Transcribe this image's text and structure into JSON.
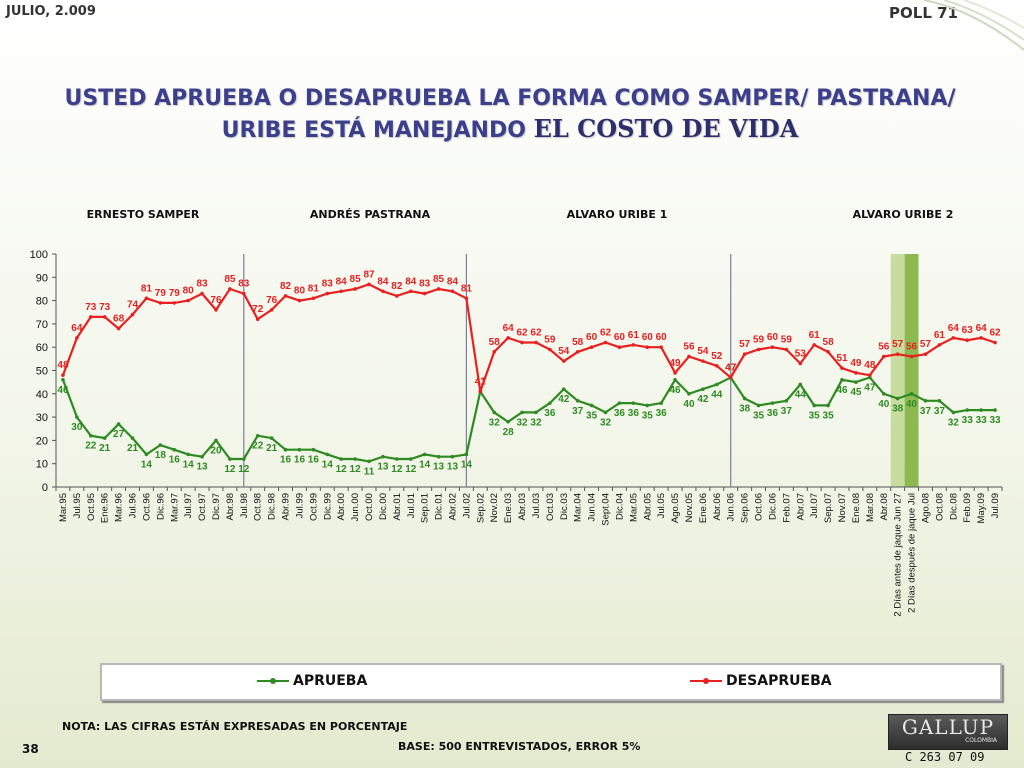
{
  "header": {
    "date": "JULIO, 2.009",
    "poll": "POLL 71"
  },
  "title": {
    "line1": "USTED APRUEBA O DESAPRUEBA LA FORMA COMO SAMPER/ PASTRANA/",
    "line2_prefix": "URIBE ESTÁ MANEJANDO ",
    "line2_highlight": "EL COSTO DE VIDA"
  },
  "legend": {
    "approve": "APRUEBA",
    "disapprove": "DESAPRUEBA"
  },
  "footer": {
    "note": "NOTA: LAS CIFRAS ESTÁN EXPRESADAS EN PORCENTAJE",
    "base": "BASE: 500 ENTREVISTADOS, ERROR 5%",
    "page": "38",
    "code": "C 263 07 09",
    "logo": "GALLUP",
    "logo_sub": "COLOMBIA"
  },
  "colors": {
    "approve": "#2e8b22",
    "disapprove": "#e82020",
    "band_light": "#c8dca0",
    "band_dark": "#8cba50"
  },
  "chart_data": {
    "type": "line",
    "title": "",
    "xlabel": "",
    "ylabel": "",
    "ylim": [
      0,
      100
    ],
    "yticks": [
      0,
      10,
      20,
      30,
      40,
      50,
      60,
      70,
      80,
      90,
      100
    ],
    "periods": [
      "ERNESTO SAMPER",
      "ANDRÉS  PASTRANA",
      "ALVARO URIBE 1",
      "ALVARO URIBE 2"
    ],
    "x": [
      "Mar.95",
      "Jul.95",
      "Oct.95",
      "Ene.96",
      "Mar.96",
      "Jul.96",
      "Oct.96",
      "Dic.96",
      "Mar.97",
      "Jul.97",
      "Oct.97",
      "Dic.97",
      "Abr.98",
      "Jul.98",
      "Oct.98",
      "Dic.98",
      "Abr.99",
      "Jul.99",
      "Oct.99",
      "Dic.99",
      "Abr.00",
      "Jun.00",
      "Oct.00",
      "Dic.00",
      "Abr.01",
      "Jul.01",
      "Sep.01",
      "Dic.01",
      "Abr.02",
      "Jul.02",
      "Sep.02",
      "Nov.02",
      "Ene.03",
      "Abr.03",
      "Jul.03",
      "Oct.03",
      "Dic.03",
      "Mar.04",
      "Jun.04",
      "Sept.04",
      "Dic.04",
      "Mar.05",
      "Abr.05",
      "Jul.05",
      "Ago.05",
      "Nov.05",
      "Ene.06",
      "Abr.06",
      "Jun.06",
      "Sep.06",
      "Oct.06",
      "Dic.06",
      "Feb.07",
      "Abr.07",
      "Jul.07",
      "Sep.07",
      "Nov.07",
      "Ene.08",
      "Mar.08",
      "Abr.08",
      "2 Días antes de jaque Jun 27",
      "2 Días después de jaque Jul",
      "Ago.08",
      "Oct.08",
      "Dic.08",
      "Feb.09",
      "May.09",
      "Jul.09"
    ],
    "series": [
      {
        "name": "APRUEBA",
        "values": [
          46,
          30,
          22,
          21,
          27,
          21,
          14,
          18,
          16,
          14,
          13,
          20,
          12,
          12,
          22,
          21,
          16,
          16,
          16,
          14,
          12,
          12,
          11,
          13,
          12,
          12,
          14,
          13,
          13,
          14,
          41,
          32,
          28,
          32,
          32,
          36,
          42,
          37,
          35,
          32,
          36,
          36,
          35,
          36,
          46,
          40,
          42,
          44,
          47,
          38,
          35,
          36,
          37,
          44,
          35,
          35,
          46,
          45,
          47,
          40,
          38,
          40,
          37,
          37,
          32,
          33,
          33,
          33
        ]
      },
      {
        "name": "DESAPRUEBA",
        "values": [
          48,
          64,
          73,
          73,
          68,
          74,
          81,
          79,
          79,
          80,
          83,
          76,
          85,
          83,
          72,
          76,
          82,
          80,
          81,
          83,
          84,
          85,
          87,
          84,
          82,
          84,
          83,
          85,
          84,
          81,
          41,
          58,
          64,
          62,
          62,
          59,
          54,
          58,
          60,
          62,
          60,
          61,
          60,
          60,
          49,
          56,
          54,
          52,
          47,
          57,
          59,
          60,
          59,
          53,
          61,
          58,
          51,
          49,
          48,
          56,
          57,
          56,
          57,
          61,
          64,
          63,
          64,
          62
        ]
      }
    ],
    "grid": false,
    "legend_position": "bottom",
    "dividers_after": [
      "Jul.98",
      "Jul.02",
      "Jun.06"
    ],
    "highlight_columns": [
      "2 Días antes de jaque Jun 27",
      "2 Días después de jaque Jul"
    ]
  }
}
